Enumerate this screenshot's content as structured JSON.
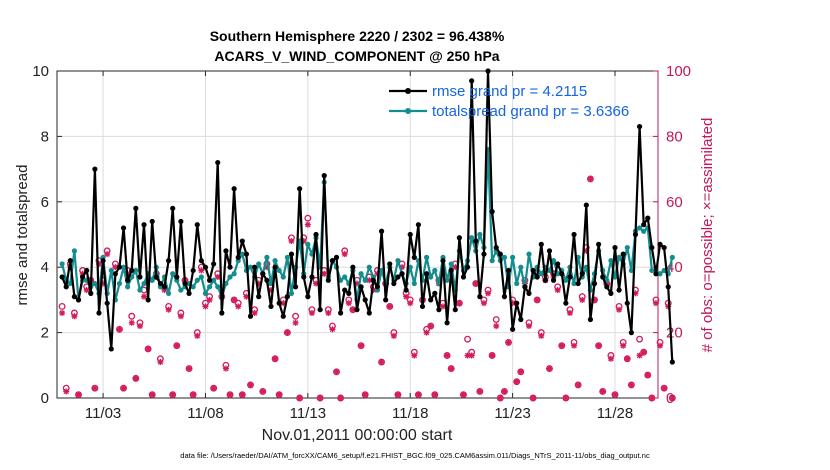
{
  "chart_data": {
    "type": "line",
    "title_line1": "Southern Hemisphere 2220 / 2302 = 96.438%",
    "title_line2": "ACARS_V_WIND_COMPONENT @ 250 hPa",
    "xlabel": "Nov.01,2011 00:00:00 start",
    "ylabel": "rmse and totalspread",
    "ylabel_right": "# of obs: o=possible; ×=assimilated",
    "footer": "data file: /Users/raeder/DAI/ATM_forcXX/CAM6_setup/f.e21.FHIST_BGC.f09_025.CAM6assim.011/Diags_NTrS_2011-11/obs_diag_output.nc",
    "xlim": [
      0.75,
      30.1
    ],
    "ylim": [
      0,
      10
    ],
    "ylim_right": [
      0,
      100
    ],
    "x_ticks": [
      3,
      8,
      13,
      18,
      23,
      28
    ],
    "x_tick_labels": [
      "11/03",
      "11/08",
      "11/13",
      "11/18",
      "11/23",
      "11/28"
    ],
    "y_ticks": [
      0,
      2,
      4,
      6,
      8,
      10
    ],
    "y_tick_labels": [
      "0",
      "2",
      "4",
      "6",
      "8",
      "10"
    ],
    "y_ticks_right": [
      0,
      20,
      40,
      60,
      80,
      100
    ],
    "y_tick_labels_right": [
      "0",
      "20",
      "40",
      "60",
      "80",
      "100"
    ],
    "colors": {
      "rmse": "#000000",
      "spread": "#138d8d",
      "obs": "#d41a5c",
      "legend_text": "#1565e0"
    },
    "series": [
      {
        "name": "rmse grand pr = 4.2115",
        "color": "#000000",
        "values": [
          3.7,
          3.4,
          4.2,
          3.1,
          3.0,
          3.7,
          3.9,
          3.2,
          7.0,
          2.6,
          4.2,
          2.9,
          1.5,
          3.8,
          4.0,
          5.2,
          3.6,
          3.9,
          5.8,
          3.7,
          5.3,
          3.0,
          5.4,
          3.7,
          3.5,
          3.4,
          4.2,
          5.8,
          3.7,
          5.4,
          3.5,
          3.2,
          3.9,
          5.3,
          4.2,
          4.0,
          3.6,
          4.1,
          7.2,
          2.6,
          4.5,
          4.0,
          6.4,
          4.3,
          4.8,
          4.4,
          2.5,
          4.0,
          3.1,
          3.8,
          3.6,
          2.8,
          4.0,
          2.9,
          2.5,
          3.1,
          4.4,
          3.4,
          6.4,
          3.7,
          3.1,
          3.7,
          5.0,
          2.7,
          6.8,
          3.6,
          4.2,
          4.3,
          2.6,
          3.3,
          3.2,
          4.0,
          2.7,
          3.4,
          3.0,
          2.6,
          3.6,
          3.4,
          5.1,
          3.0,
          4.1,
          3.5,
          3.7,
          3.8,
          3.3,
          5.0,
          4.3,
          5.3,
          2.8,
          3.8,
          3.0,
          3.2,
          2.7,
          4.2,
          2.3,
          3.9,
          2.7,
          4.9,
          3.7,
          4.0,
          9.7,
          4.8,
          3.1,
          4.4,
          10.0,
          5.7,
          4.6,
          4.4,
          3.1,
          3.9,
          2.1,
          2.9,
          2.4,
          3.4,
          3.2,
          3.9,
          3.7,
          4.7,
          3.6,
          4.5,
          3.6,
          4.1,
          3.8,
          2.9,
          3.7,
          5.0,
          3.5,
          3.8,
          5.9,
          2.4,
          3.5,
          4.7,
          3.7,
          3.4,
          3.2,
          4.6,
          3.3,
          4.4,
          2.9,
          2.0,
          5.0,
          8.3,
          5.3,
          5.5,
          4.6,
          3.8,
          4.7,
          4.6,
          3.4,
          1.1
        ]
      },
      {
        "name": "totalspread grand pr = 3.6366",
        "color": "#138d8d",
        "values": [
          4.1,
          3.6,
          3.5,
          4.5,
          3.0,
          3.6,
          3.6,
          3.4,
          3.5,
          3.2,
          4.3,
          3.2,
          3.9,
          3.0,
          3.5,
          4.0,
          3.4,
          3.7,
          3.9,
          3.3,
          3.5,
          3.8,
          3.6,
          4.0,
          3.4,
          3.7,
          3.2,
          3.8,
          3.6,
          3.3,
          3.4,
          3.5,
          3.4,
          3.6,
          3.7,
          3.2,
          3.4,
          3.6,
          3.4,
          3.1,
          3.5,
          3.7,
          3.8,
          4.2,
          4.4,
          3.9,
          4.0,
          3.7,
          4.1,
          3.8,
          4.3,
          3.5,
          4.2,
          3.9,
          3.7,
          4.3,
          3.2,
          4.0,
          4.8,
          3.8,
          4.7,
          4.4,
          4.9,
          4.0,
          6.6,
          3.7,
          4.2,
          4.0,
          3.6,
          3.7,
          3.5,
          3.9,
          3.0,
          3.8,
          3.6,
          4.0,
          3.7,
          3.3,
          3.9,
          3.5,
          4.0,
          3.6,
          4.2,
          3.8,
          3.5,
          4.0,
          3.5,
          4.2,
          3.6,
          4.3,
          3.7,
          3.9,
          3.5,
          4.3,
          3.6,
          4.1,
          3.3,
          4.5,
          3.9,
          4.2,
          4.9,
          4.5,
          5.0,
          4.6,
          7.6,
          4.2,
          4.5,
          4.2,
          4.3,
          3.4,
          4.3,
          3.5,
          4.0,
          3.4,
          4.4,
          3.7,
          4.0,
          3.8,
          4.0,
          3.9,
          4.2,
          3.8,
          3.9,
          3.6,
          4.0,
          3.5,
          4.3,
          3.7,
          4.0,
          3.3,
          3.8,
          4.5,
          3.9,
          3.6,
          4.2,
          3.7,
          4.3,
          4.1,
          4.6,
          3.9,
          5.1,
          5.2,
          5.1,
          5.2,
          3.9,
          3.9,
          3.8,
          3.9,
          3.8,
          4.3
        ]
      }
    ],
    "obs_possible": [
      [
        0,
        28
      ],
      [
        1,
        3
      ],
      [
        2,
        41
      ],
      [
        3,
        26
      ],
      [
        4,
        1
      ],
      [
        5,
        39
      ],
      [
        6,
        34
      ],
      [
        7,
        36
      ],
      [
        8,
        3
      ],
      [
        9,
        42
      ],
      [
        10,
        36
      ],
      [
        11,
        45
      ],
      [
        13,
        41
      ],
      [
        14,
        21
      ],
      [
        15,
        3
      ],
      [
        16,
        39
      ],
      [
        17,
        25
      ],
      [
        18,
        6
      ],
      [
        19,
        23
      ],
      [
        20,
        33
      ],
      [
        21,
        15
      ],
      [
        22,
        1
      ],
      [
        23,
        38
      ],
      [
        24,
        12
      ],
      [
        25,
        34
      ],
      [
        26,
        28
      ],
      [
        27,
        1
      ],
      [
        28,
        16
      ],
      [
        29,
        26
      ],
      [
        30,
        36
      ],
      [
        31,
        9
      ],
      [
        32,
        1
      ],
      [
        33,
        20
      ],
      [
        34,
        40
      ],
      [
        35,
        29
      ],
      [
        36,
        31
      ],
      [
        37,
        3
      ],
      [
        38,
        38
      ],
      [
        39,
        31
      ],
      [
        40,
        10
      ],
      [
        41,
        1
      ],
      [
        42,
        30
      ],
      [
        43,
        29
      ],
      [
        44,
        1
      ],
      [
        45,
        32
      ],
      [
        46,
        4
      ],
      [
        47,
        27
      ],
      [
        48,
        36
      ],
      [
        49,
        2
      ],
      [
        50,
        41
      ],
      [
        51,
        34
      ],
      [
        52,
        12
      ],
      [
        53,
        1
      ],
      [
        54,
        30
      ],
      [
        55,
        20
      ],
      [
        56,
        49
      ],
      [
        57,
        25
      ],
      [
        58,
        0
      ],
      [
        59,
        49
      ],
      [
        60,
        55
      ],
      [
        61,
        27
      ],
      [
        62,
        36
      ],
      [
        63,
        0
      ],
      [
        64,
        39
      ],
      [
        65,
        27
      ],
      [
        66,
        22
      ],
      [
        67,
        8
      ],
      [
        68,
        0
      ],
      [
        69,
        45
      ],
      [
        70,
        30
      ],
      [
        71,
        27
      ],
      [
        72,
        36
      ],
      [
        73,
        16
      ],
      [
        74,
        1
      ],
      [
        75,
        37
      ],
      [
        76,
        34
      ],
      [
        77,
        39
      ],
      [
        78,
        11
      ],
      [
        79,
        35
      ],
      [
        80,
        28
      ],
      [
        81,
        20
      ],
      [
        82,
        1
      ],
      [
        83,
        41
      ],
      [
        84,
        32
      ],
      [
        85,
        30
      ],
      [
        86,
        14
      ],
      [
        87,
        1
      ],
      [
        88,
        30
      ],
      [
        89,
        21
      ],
      [
        90,
        22
      ],
      [
        91,
        1
      ],
      [
        92,
        36
      ],
      [
        93,
        29
      ],
      [
        94,
        13
      ],
      [
        95,
        9
      ],
      [
        96,
        41
      ],
      [
        97,
        29
      ],
      [
        98,
        1
      ],
      [
        99,
        18
      ],
      [
        100,
        14
      ],
      [
        101,
        35
      ],
      [
        102,
        2
      ],
      [
        103,
        30
      ],
      [
        104,
        33
      ],
      [
        105,
        13
      ],
      [
        106,
        24
      ],
      [
        107,
        0
      ],
      [
        108,
        2
      ],
      [
        109,
        17
      ],
      [
        110,
        30
      ],
      [
        111,
        5
      ],
      [
        112,
        8
      ],
      [
        113,
        36
      ],
      [
        114,
        23
      ],
      [
        115,
        0
      ],
      [
        116,
        30
      ],
      [
        117,
        20
      ],
      [
        118,
        37
      ],
      [
        119,
        9
      ],
      [
        120,
        38
      ],
      [
        121,
        34
      ],
      [
        122,
        16
      ],
      [
        123,
        0
      ],
      [
        124,
        27
      ],
      [
        125,
        17
      ],
      [
        126,
        4
      ],
      [
        127,
        31
      ],
      [
        128,
        46
      ],
      [
        129,
        67
      ],
      [
        130,
        30
      ],
      [
        131,
        16
      ],
      [
        132,
        2
      ],
      [
        133,
        35
      ],
      [
        134,
        13
      ],
      [
        135,
        1
      ],
      [
        136,
        28
      ],
      [
        137,
        17
      ],
      [
        138,
        12
      ],
      [
        139,
        4
      ],
      [
        140,
        33
      ],
      [
        141,
        18
      ],
      [
        142,
        14
      ],
      [
        143,
        7
      ],
      [
        144,
        0
      ],
      [
        145,
        30
      ],
      [
        146,
        17
      ],
      [
        147,
        3
      ],
      [
        148,
        29
      ],
      [
        149,
        0
      ]
    ],
    "obs_assimilated": [
      [
        0,
        26
      ],
      [
        1,
        2
      ],
      [
        2,
        40
      ],
      [
        3,
        25
      ],
      [
        4,
        1
      ],
      [
        5,
        38
      ],
      [
        6,
        33
      ],
      [
        7,
        36
      ],
      [
        8,
        3
      ],
      [
        9,
        41
      ],
      [
        10,
        35
      ],
      [
        11,
        44
      ],
      [
        13,
        40
      ],
      [
        14,
        21
      ],
      [
        15,
        3
      ],
      [
        16,
        38
      ],
      [
        17,
        23
      ],
      [
        18,
        6
      ],
      [
        19,
        22
      ],
      [
        20,
        31
      ],
      [
        21,
        15
      ],
      [
        22,
        1
      ],
      [
        23,
        37
      ],
      [
        24,
        11
      ],
      [
        25,
        33
      ],
      [
        26,
        27
      ],
      [
        27,
        1
      ],
      [
        28,
        16
      ],
      [
        29,
        25
      ],
      [
        30,
        36
      ],
      [
        31,
        9
      ],
      [
        32,
        1
      ],
      [
        33,
        19
      ],
      [
        34,
        39
      ],
      [
        35,
        28
      ],
      [
        36,
        30
      ],
      [
        37,
        3
      ],
      [
        38,
        37
      ],
      [
        39,
        31
      ],
      [
        40,
        9
      ],
      [
        41,
        1
      ],
      [
        42,
        30
      ],
      [
        43,
        28
      ],
      [
        44,
        1
      ],
      [
        45,
        31
      ],
      [
        46,
        4
      ],
      [
        47,
        26
      ],
      [
        48,
        35
      ],
      [
        49,
        2
      ],
      [
        50,
        40
      ],
      [
        51,
        33
      ],
      [
        52,
        12
      ],
      [
        53,
        1
      ],
      [
        54,
        29
      ],
      [
        55,
        20
      ],
      [
        56,
        48
      ],
      [
        57,
        23
      ],
      [
        58,
        0
      ],
      [
        59,
        48
      ],
      [
        60,
        53
      ],
      [
        61,
        26
      ],
      [
        62,
        35
      ],
      [
        63,
        0
      ],
      [
        64,
        38
      ],
      [
        65,
        26
      ],
      [
        66,
        21
      ],
      [
        67,
        8
      ],
      [
        68,
        0
      ],
      [
        69,
        44
      ],
      [
        70,
        29
      ],
      [
        71,
        27
      ],
      [
        72,
        35
      ],
      [
        73,
        16
      ],
      [
        74,
        1
      ],
      [
        75,
        36
      ],
      [
        76,
        33
      ],
      [
        77,
        38
      ],
      [
        78,
        11
      ],
      [
        79,
        35
      ],
      [
        80,
        28
      ],
      [
        81,
        19
      ],
      [
        82,
        1
      ],
      [
        83,
        40
      ],
      [
        84,
        31
      ],
      [
        85,
        29
      ],
      [
        86,
        13
      ],
      [
        87,
        1
      ],
      [
        88,
        30
      ],
      [
        89,
        20
      ],
      [
        90,
        22
      ],
      [
        91,
        1
      ],
      [
        92,
        35
      ],
      [
        93,
        28
      ],
      [
        94,
        13
      ],
      [
        95,
        9
      ],
      [
        96,
        40
      ],
      [
        97,
        29
      ],
      [
        98,
        1
      ],
      [
        99,
        13
      ],
      [
        100,
        13
      ],
      [
        101,
        35
      ],
      [
        102,
        2
      ],
      [
        103,
        29
      ],
      [
        104,
        32
      ],
      [
        105,
        13
      ],
      [
        106,
        22
      ],
      [
        107,
        0
      ],
      [
        108,
        2
      ],
      [
        109,
        17
      ],
      [
        110,
        29
      ],
      [
        111,
        5
      ],
      [
        112,
        8
      ],
      [
        113,
        35
      ],
      [
        114,
        22
      ],
      [
        115,
        0
      ],
      [
        116,
        30
      ],
      [
        117,
        19
      ],
      [
        118,
        36
      ],
      [
        119,
        9
      ],
      [
        120,
        37
      ],
      [
        121,
        33
      ],
      [
        122,
        16
      ],
      [
        123,
        0
      ],
      [
        124,
        26
      ],
      [
        125,
        16
      ],
      [
        126,
        4
      ],
      [
        127,
        30
      ],
      [
        128,
        45
      ],
      [
        129,
        67
      ],
      [
        130,
        30
      ],
      [
        131,
        16
      ],
      [
        132,
        2
      ],
      [
        133,
        35
      ],
      [
        134,
        12
      ],
      [
        135,
        1
      ],
      [
        136,
        27
      ],
      [
        137,
        16
      ],
      [
        138,
        12
      ],
      [
        139,
        4
      ],
      [
        140,
        32
      ],
      [
        141,
        13
      ],
      [
        142,
        14
      ],
      [
        143,
        7
      ],
      [
        144,
        0
      ],
      [
        145,
        29
      ],
      [
        146,
        16
      ],
      [
        147,
        3
      ],
      [
        148,
        28
      ],
      [
        149,
        0
      ]
    ]
  }
}
